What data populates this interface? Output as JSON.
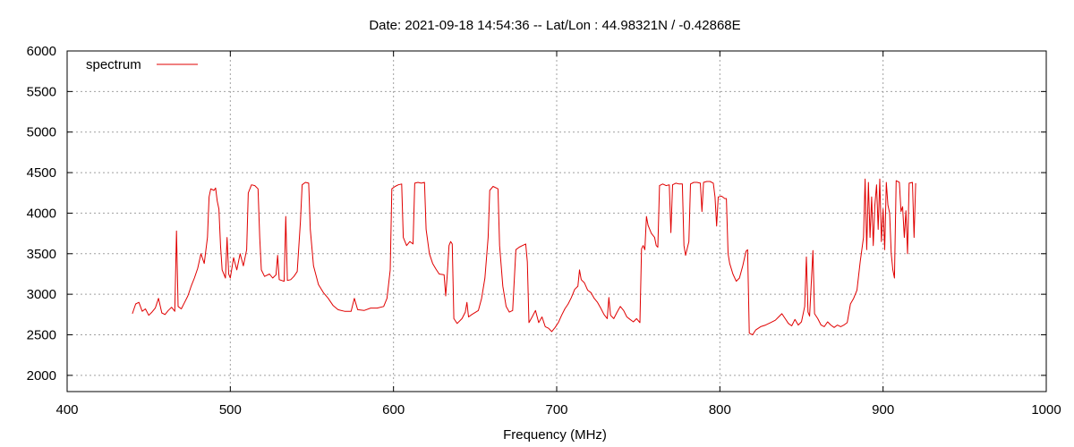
{
  "chart_data": {
    "type": "line",
    "title": "Date: 2021-09-18 14:54:36  --  Lat/Lon : 44.98321N / -0.42868E",
    "xlabel": "Frequency (MHz)",
    "ylabel": "",
    "xlim": [
      400,
      1000
    ],
    "ylim": [
      1800,
      6000
    ],
    "xticks": [
      400,
      500,
      600,
      700,
      800,
      900,
      1000
    ],
    "yticks": [
      2000,
      2500,
      3000,
      3500,
      4000,
      4500,
      5000,
      5500,
      6000
    ],
    "grid": true,
    "legend_position": "top-left",
    "series": [
      {
        "name": "spectrum",
        "color": "#e00000",
        "points": [
          [
            440,
            2760
          ],
          [
            442,
            2880
          ],
          [
            444,
            2900
          ],
          [
            446,
            2790
          ],
          [
            448,
            2820
          ],
          [
            450,
            2740
          ],
          [
            452,
            2780
          ],
          [
            454,
            2830
          ],
          [
            456,
            2950
          ],
          [
            458,
            2770
          ],
          [
            460,
            2750
          ],
          [
            462,
            2800
          ],
          [
            464,
            2840
          ],
          [
            466,
            2790
          ],
          [
            467,
            3780
          ],
          [
            468,
            2850
          ],
          [
            470,
            2820
          ],
          [
            472,
            2900
          ],
          [
            474,
            2980
          ],
          [
            476,
            3100
          ],
          [
            478,
            3200
          ],
          [
            480,
            3320
          ],
          [
            482,
            3500
          ],
          [
            484,
            3380
          ],
          [
            486,
            3700
          ],
          [
            487,
            4200
          ],
          [
            488,
            4300
          ],
          [
            490,
            4280
          ],
          [
            491,
            4310
          ],
          [
            492,
            4150
          ],
          [
            493,
            4050
          ],
          [
            494,
            3600
          ],
          [
            495,
            3300
          ],
          [
            497,
            3200
          ],
          [
            498,
            3700
          ],
          [
            499,
            3250
          ],
          [
            500,
            3200
          ],
          [
            502,
            3450
          ],
          [
            504,
            3300
          ],
          [
            506,
            3500
          ],
          [
            508,
            3350
          ],
          [
            510,
            3550
          ],
          [
            511,
            4250
          ],
          [
            513,
            4350
          ],
          [
            515,
            4340
          ],
          [
            517,
            4300
          ],
          [
            518,
            3700
          ],
          [
            519,
            3300
          ],
          [
            521,
            3220
          ],
          [
            524,
            3250
          ],
          [
            526,
            3200
          ],
          [
            528,
            3240
          ],
          [
            529,
            3480
          ],
          [
            530,
            3180
          ],
          [
            533,
            3160
          ],
          [
            534,
            3960
          ],
          [
            535,
            3170
          ],
          [
            537,
            3180
          ],
          [
            539,
            3220
          ],
          [
            541,
            3280
          ],
          [
            543,
            3900
          ],
          [
            544,
            4350
          ],
          [
            546,
            4380
          ],
          [
            548,
            4370
          ],
          [
            549,
            3800
          ],
          [
            551,
            3350
          ],
          [
            554,
            3120
          ],
          [
            557,
            3020
          ],
          [
            560,
            2950
          ],
          [
            563,
            2860
          ],
          [
            566,
            2810
          ],
          [
            570,
            2790
          ],
          [
            574,
            2790
          ],
          [
            576,
            2950
          ],
          [
            578,
            2810
          ],
          [
            582,
            2800
          ],
          [
            586,
            2830
          ],
          [
            590,
            2830
          ],
          [
            594,
            2850
          ],
          [
            596,
            2950
          ],
          [
            598,
            3300
          ],
          [
            599,
            4300
          ],
          [
            601,
            4330
          ],
          [
            603,
            4350
          ],
          [
            605,
            4360
          ],
          [
            606,
            3700
          ],
          [
            608,
            3600
          ],
          [
            610,
            3650
          ],
          [
            612,
            3620
          ],
          [
            613,
            4370
          ],
          [
            615,
            4380
          ],
          [
            617,
            4370
          ],
          [
            619,
            4380
          ],
          [
            620,
            3800
          ],
          [
            622,
            3500
          ],
          [
            624,
            3380
          ],
          [
            626,
            3310
          ],
          [
            628,
            3250
          ],
          [
            631,
            3240
          ],
          [
            632,
            2980
          ],
          [
            633,
            3250
          ],
          [
            634,
            3600
          ],
          [
            635,
            3650
          ],
          [
            636,
            3620
          ],
          [
            637,
            2700
          ],
          [
            639,
            2640
          ],
          [
            642,
            2700
          ],
          [
            644,
            2780
          ],
          [
            645,
            2900
          ],
          [
            646,
            2720
          ],
          [
            648,
            2750
          ],
          [
            652,
            2800
          ],
          [
            654,
            2950
          ],
          [
            656,
            3200
          ],
          [
            658,
            3700
          ],
          [
            659,
            4280
          ],
          [
            661,
            4330
          ],
          [
            664,
            4300
          ],
          [
            665,
            3600
          ],
          [
            667,
            3100
          ],
          [
            669,
            2850
          ],
          [
            671,
            2780
          ],
          [
            673,
            2800
          ],
          [
            675,
            3550
          ],
          [
            677,
            3580
          ],
          [
            679,
            3600
          ],
          [
            681,
            3620
          ],
          [
            682,
            3400
          ],
          [
            683,
            2650
          ],
          [
            685,
            2720
          ],
          [
            687,
            2800
          ],
          [
            689,
            2650
          ],
          [
            691,
            2720
          ],
          [
            693,
            2600
          ],
          [
            695,
            2580
          ],
          [
            697,
            2540
          ],
          [
            699,
            2590
          ],
          [
            701,
            2650
          ],
          [
            703,
            2740
          ],
          [
            705,
            2820
          ],
          [
            707,
            2880
          ],
          [
            709,
            2960
          ],
          [
            711,
            3060
          ],
          [
            713,
            3100
          ],
          [
            714,
            3300
          ],
          [
            715,
            3180
          ],
          [
            717,
            3140
          ],
          [
            719,
            3050
          ],
          [
            721,
            3020
          ],
          [
            723,
            2950
          ],
          [
            725,
            2900
          ],
          [
            727,
            2830
          ],
          [
            729,
            2750
          ],
          [
            731,
            2700
          ],
          [
            732,
            2960
          ],
          [
            733,
            2740
          ],
          [
            735,
            2700
          ],
          [
            737,
            2780
          ],
          [
            739,
            2850
          ],
          [
            741,
            2800
          ],
          [
            743,
            2720
          ],
          [
            745,
            2690
          ],
          [
            747,
            2660
          ],
          [
            749,
            2700
          ],
          [
            751,
            2650
          ],
          [
            752,
            3560
          ],
          [
            753,
            3600
          ],
          [
            754,
            3550
          ],
          [
            755,
            3960
          ],
          [
            756,
            3850
          ],
          [
            758,
            3750
          ],
          [
            760,
            3700
          ],
          [
            761,
            3600
          ],
          [
            762,
            3580
          ],
          [
            763,
            4340
          ],
          [
            765,
            4360
          ],
          [
            767,
            4340
          ],
          [
            769,
            4350
          ],
          [
            770,
            3760
          ],
          [
            771,
            4350
          ],
          [
            773,
            4370
          ],
          [
            775,
            4360
          ],
          [
            777,
            4360
          ],
          [
            778,
            3600
          ],
          [
            779,
            3480
          ],
          [
            781,
            3650
          ],
          [
            782,
            4360
          ],
          [
            784,
            4380
          ],
          [
            786,
            4380
          ],
          [
            788,
            4370
          ],
          [
            789,
            4020
          ],
          [
            790,
            4380
          ],
          [
            792,
            4390
          ],
          [
            794,
            4390
          ],
          [
            796,
            4370
          ],
          [
            797,
            4200
          ],
          [
            798,
            3840
          ],
          [
            799,
            4200
          ],
          [
            801,
            4210
          ],
          [
            803,
            4180
          ],
          [
            804,
            4180
          ],
          [
            805,
            3500
          ],
          [
            806,
            3380
          ],
          [
            808,
            3250
          ],
          [
            810,
            3160
          ],
          [
            812,
            3200
          ],
          [
            814,
            3350
          ],
          [
            816,
            3530
          ],
          [
            817,
            3550
          ],
          [
            818,
            2520
          ],
          [
            820,
            2500
          ],
          [
            822,
            2560
          ],
          [
            825,
            2600
          ],
          [
            828,
            2620
          ],
          [
            831,
            2650
          ],
          [
            834,
            2680
          ],
          [
            836,
            2720
          ],
          [
            838,
            2760
          ],
          [
            840,
            2700
          ],
          [
            842,
            2640
          ],
          [
            844,
            2610
          ],
          [
            846,
            2690
          ],
          [
            848,
            2620
          ],
          [
            850,
            2660
          ],
          [
            852,
            2850
          ],
          [
            853,
            3460
          ],
          [
            854,
            2780
          ],
          [
            855,
            2730
          ],
          [
            857,
            3540
          ],
          [
            858,
            2760
          ],
          [
            860,
            2700
          ],
          [
            862,
            2620
          ],
          [
            864,
            2600
          ],
          [
            866,
            2660
          ],
          [
            868,
            2620
          ],
          [
            870,
            2590
          ],
          [
            872,
            2620
          ],
          [
            874,
            2600
          ],
          [
            876,
            2620
          ],
          [
            878,
            2650
          ],
          [
            880,
            2880
          ],
          [
            882,
            2950
          ],
          [
            884,
            3050
          ],
          [
            886,
            3400
          ],
          [
            888,
            3700
          ],
          [
            889,
            4420
          ],
          [
            890,
            3550
          ],
          [
            891,
            4380
          ],
          [
            892,
            3700
          ],
          [
            893,
            4200
          ],
          [
            894,
            3600
          ],
          [
            895,
            4100
          ],
          [
            896,
            4350
          ],
          [
            897,
            3800
          ],
          [
            898,
            4420
          ],
          [
            899,
            3650
          ],
          [
            900,
            4050
          ],
          [
            901,
            3550
          ],
          [
            902,
            4380
          ],
          [
            903,
            4100
          ],
          [
            904,
            4000
          ],
          [
            905,
            3500
          ],
          [
            906,
            3300
          ],
          [
            907,
            3200
          ],
          [
            908,
            4400
          ],
          [
            910,
            4380
          ],
          [
            911,
            4020
          ],
          [
            912,
            4080
          ],
          [
            913,
            3700
          ],
          [
            914,
            4030
          ],
          [
            915,
            3500
          ],
          [
            916,
            4370
          ],
          [
            918,
            4380
          ],
          [
            919,
            3700
          ],
          [
            920,
            4370
          ]
        ]
      }
    ]
  }
}
